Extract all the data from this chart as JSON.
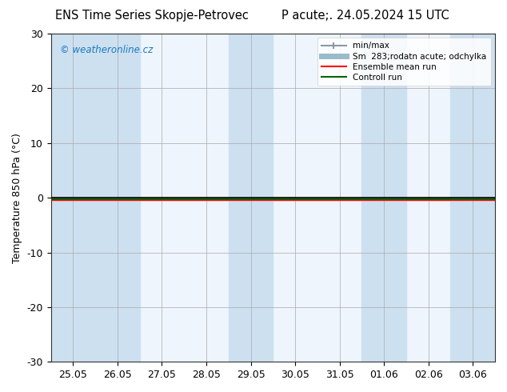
{
  "title": "ENS Time Series Skopje-Petrovec",
  "title_right": "P acute;. 24.05.2024 15 UTC",
  "ylabel": "Temperature 850 hPa (°C)",
  "watermark": "© weatheronline.cz",
  "watermark_color": "#1a7abf",
  "ylim": [
    -30,
    30
  ],
  "yticks": [
    -30,
    -20,
    -10,
    0,
    10,
    20,
    30
  ],
  "xtick_labels": [
    "25.05",
    "26.05",
    "27.05",
    "28.05",
    "29.05",
    "30.05",
    "31.05",
    "01.06",
    "02.06",
    "03.06"
  ],
  "background_color": "#ffffff",
  "plot_bg_color": "#eef5fc",
  "shaded_columns": [
    0,
    1,
    4,
    7,
    9
  ],
  "shaded_color": "#cde0f0",
  "ensemble_mean_color": "#ff0000",
  "control_run_color": "#006400",
  "zero_line_y": 0.0,
  "legend_labels": [
    "min/max",
    "Sm  283;rodatn acute; odchylka",
    "Ensemble mean run",
    "Controll run"
  ],
  "minmax_line_color": "#8899aa",
  "std_line_color": "#99bbcc",
  "font_size": 9,
  "title_font_size": 10.5
}
